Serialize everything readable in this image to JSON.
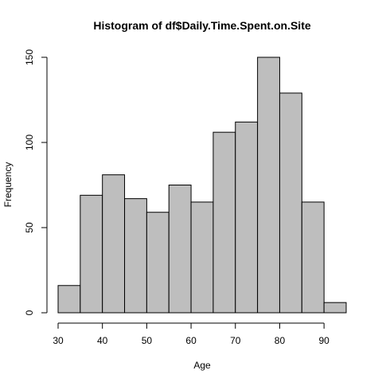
{
  "chart_data": {
    "type": "bar",
    "title": "Histogram of df$Daily.Time.Spent.on.Site",
    "xlabel": "Age",
    "ylabel": "Frequency",
    "bins": [
      {
        "start": 30,
        "end": 35,
        "count": 16
      },
      {
        "start": 35,
        "end": 40,
        "count": 69
      },
      {
        "start": 40,
        "end": 45,
        "count": 81
      },
      {
        "start": 45,
        "end": 50,
        "count": 67
      },
      {
        "start": 50,
        "end": 55,
        "count": 59
      },
      {
        "start": 55,
        "end": 60,
        "count": 75
      },
      {
        "start": 60,
        "end": 65,
        "count": 65
      },
      {
        "start": 65,
        "end": 70,
        "count": 106
      },
      {
        "start": 70,
        "end": 75,
        "count": 112
      },
      {
        "start": 75,
        "end": 80,
        "count": 150
      },
      {
        "start": 80,
        "end": 85,
        "count": 129
      },
      {
        "start": 85,
        "end": 90,
        "count": 65
      },
      {
        "start": 90,
        "end": 95,
        "count": 6
      }
    ],
    "xlim": [
      30,
      95
    ],
    "ylim": [
      0,
      150
    ],
    "xticks": [
      "30",
      "40",
      "50",
      "60",
      "70",
      "80",
      "90"
    ],
    "yticks": [
      "0",
      "50",
      "100",
      "150"
    ],
    "bar_color": "#bebebe",
    "border_color": "#000000",
    "grid": false,
    "legend": "none"
  }
}
